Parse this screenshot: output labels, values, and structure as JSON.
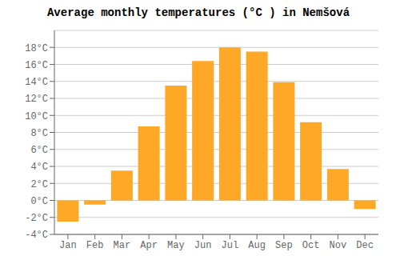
{
  "chart_data": {
    "type": "bar",
    "title": "Average monthly temperatures (°C ) in Nemšová",
    "categories": [
      "Jan",
      "Feb",
      "Mar",
      "Apr",
      "May",
      "Jun",
      "Jul",
      "Aug",
      "Sep",
      "Oct",
      "Nov",
      "Dec"
    ],
    "values": [
      -2.5,
      -0.5,
      3.5,
      8.7,
      13.5,
      16.4,
      18.0,
      17.5,
      13.9,
      9.2,
      3.7,
      -1.0
    ],
    "color": "#FFA726",
    "ylim": [
      -4,
      20
    ],
    "yticks": [
      {
        "value": -4,
        "label": "-4°C"
      },
      {
        "value": -2,
        "label": "-2°C"
      },
      {
        "value": 0,
        "label": "0°C"
      },
      {
        "value": 2,
        "label": "2°C"
      },
      {
        "value": 4,
        "label": "4°C"
      },
      {
        "value": 6,
        "label": "6°C"
      },
      {
        "value": 8,
        "label": "8°C"
      },
      {
        "value": 10,
        "label": "10°C"
      },
      {
        "value": 12,
        "label": "12°C"
      },
      {
        "value": 14,
        "label": "14°C"
      },
      {
        "value": 16,
        "label": "16°C"
      },
      {
        "value": 18,
        "label": "18°C"
      }
    ],
    "grid": true
  }
}
